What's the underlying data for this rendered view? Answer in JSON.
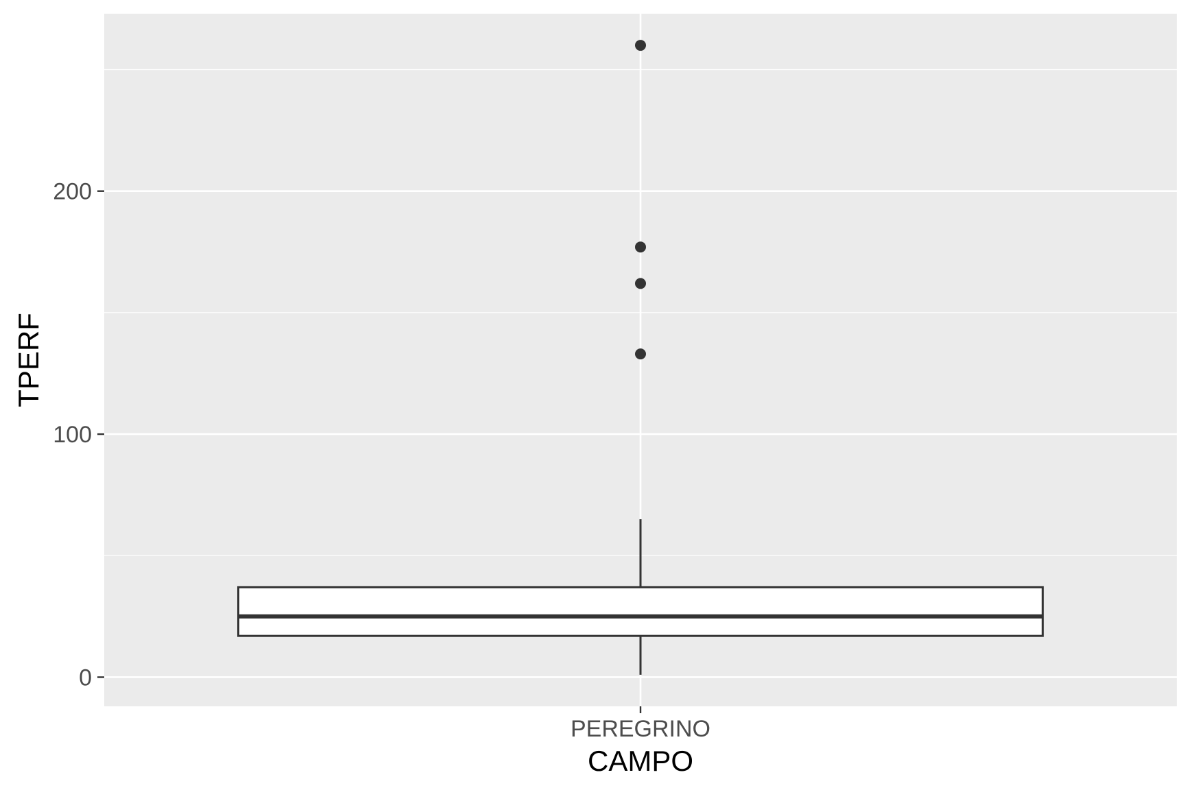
{
  "chart_data": {
    "type": "boxplot",
    "title": "",
    "xlabel": "CAMPO",
    "ylabel": "TPERF",
    "categories": [
      "PEREGRINO"
    ],
    "boxes": [
      {
        "category": "PEREGRINO",
        "whisker_low": 1,
        "q1": 17,
        "median": 25,
        "q3": 37,
        "whisker_high": 65,
        "outliers": [
          133,
          162,
          177,
          260
        ]
      }
    ],
    "y_ticks": [
      0,
      100,
      200
    ],
    "y_minor_ticks": [
      50,
      150,
      250
    ],
    "ylim": [
      -12,
      273
    ],
    "grid": true,
    "colors": {
      "panel": "#EBEBEB",
      "grid": "#FFFFFF",
      "box_line": "#333333",
      "box_fill": "#FFFFFF",
      "point": "#333333",
      "tick_text": "#4D4D4D",
      "title_text": "#000000"
    }
  }
}
